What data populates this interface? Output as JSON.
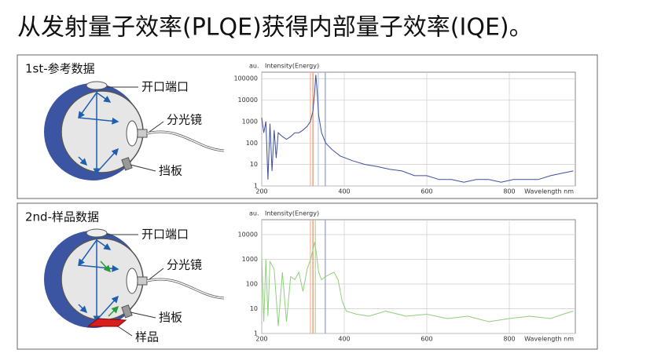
{
  "title": "从发射量子效率(PLQE)获得内部量子效率(IQE)。",
  "panels": [
    {
      "label": "1st-参考数据",
      "callouts": [
        "开口端口",
        "分光镜",
        "挡板"
      ]
    },
    {
      "label": "2nd-样品数据",
      "callouts": [
        "开口端口",
        "分光镜",
        "挡板",
        "样品"
      ]
    }
  ],
  "chart_data": [
    {
      "type": "line",
      "title": "Intensity(Energy)",
      "ylabel": "au.",
      "xlabel": "Wavelength nm",
      "log_y": true,
      "grid": true,
      "xlim": [
        200,
        960
      ],
      "xticks": [
        200,
        400,
        600,
        800
      ],
      "ylim": [
        1,
        200000
      ],
      "yticks": [
        1,
        10,
        100,
        1000,
        10000,
        100000
      ],
      "reference_lines": [
        {
          "value": 318,
          "color": "#f2b48c"
        },
        {
          "value": 324,
          "color": "#e88a6a"
        },
        {
          "value": 337,
          "color": "#b9c8e6"
        },
        {
          "value": 354,
          "color": "#8f9bd6"
        }
      ],
      "series": [
        {
          "color": "#3d4f9e",
          "x": [
            200,
            205,
            210,
            215,
            220,
            225,
            230,
            235,
            240,
            250,
            260,
            270,
            280,
            290,
            300,
            310,
            318,
            324,
            328,
            331,
            334,
            338,
            345,
            355,
            370,
            390,
            420,
            450,
            480,
            510,
            540,
            570,
            600,
            630,
            660,
            690,
            720,
            750,
            780,
            810,
            840,
            870,
            900,
            930,
            955
          ],
          "values": [
            1500,
            300,
            1000,
            2,
            800,
            5,
            400,
            20,
            300,
            200,
            150,
            200,
            300,
            300,
            400,
            600,
            1000,
            3000,
            20000,
            150000,
            30000,
            2000,
            300,
            100,
            50,
            25,
            15,
            10,
            8,
            6,
            5,
            3,
            3,
            2,
            2,
            1.5,
            2,
            2,
            1.5,
            2,
            2,
            2,
            3,
            4,
            5
          ]
        }
      ]
    },
    {
      "type": "line",
      "title": "Intensity(Energy)",
      "ylabel": "au.",
      "xlabel": "Wavelength nm",
      "log_y": true,
      "grid": true,
      "xlim": [
        200,
        960
      ],
      "xticks": [
        200,
        400,
        600,
        800
      ],
      "ylim": [
        1,
        40000
      ],
      "yticks": [
        1,
        10,
        100,
        1000,
        10000
      ],
      "reference_lines": [
        {
          "value": 318,
          "color": "#f2b48c"
        },
        {
          "value": 324,
          "color": "#e88a6a"
        },
        {
          "value": 330,
          "color": "#a6dd94"
        },
        {
          "value": 354,
          "color": "#8f9bd6"
        }
      ],
      "series": [
        {
          "color": "#8fd07a",
          "x": [
            200,
            205,
            210,
            215,
            220,
            230,
            240,
            250,
            260,
            270,
            280,
            290,
            300,
            310,
            320,
            328,
            332,
            338,
            345,
            355,
            365,
            375,
            385,
            395,
            405,
            430,
            460,
            500,
            550,
            600,
            650,
            700,
            750,
            800,
            850,
            900,
            930,
            955
          ],
          "values": [
            1500,
            3,
            1000,
            5,
            800,
            400,
            2,
            300,
            3,
            200,
            150,
            300,
            50,
            400,
            1200,
            5000,
            2000,
            300,
            150,
            200,
            250,
            300,
            150,
            20,
            8,
            6,
            5,
            8,
            5,
            6,
            4,
            5,
            3,
            4,
            5,
            4,
            6,
            8
          ]
        }
      ]
    }
  ]
}
